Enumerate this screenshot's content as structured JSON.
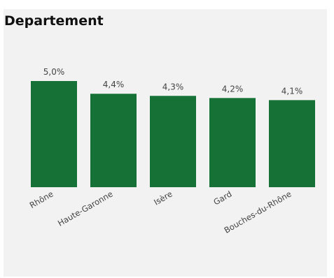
{
  "chart_data": {
    "type": "bar",
    "title": "Departement",
    "categories": [
      "Rhône",
      "Haute-Garonne",
      "Isère",
      "Gard",
      "Bouches-du-Rhône"
    ],
    "values": [
      5.0,
      4.4,
      4.3,
      4.2,
      4.1
    ],
    "data_labels": [
      "5,0%",
      "4,4%",
      "4,3%",
      "4,2%",
      "4,1%"
    ],
    "ylim": [
      0,
      5.0
    ],
    "grid": false,
    "bar_color": "#157135"
  }
}
